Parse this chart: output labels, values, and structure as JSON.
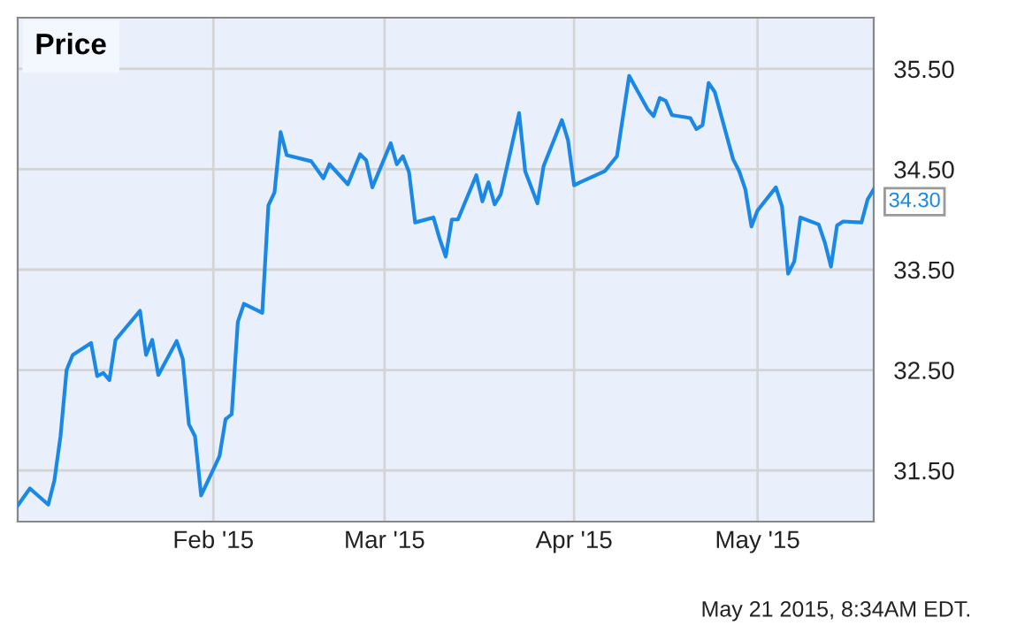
{
  "chart_data": {
    "type": "line",
    "title": "Price",
    "x": [
      "2014-12-31",
      "2015-01-02",
      "2015-01-05",
      "2015-01-06",
      "2015-01-07",
      "2015-01-08",
      "2015-01-09",
      "2015-01-12",
      "2015-01-13",
      "2015-01-14",
      "2015-01-15",
      "2015-01-16",
      "2015-01-20",
      "2015-01-21",
      "2015-01-22",
      "2015-01-23",
      "2015-01-26",
      "2015-01-27",
      "2015-01-28",
      "2015-01-29",
      "2015-01-30",
      "2015-02-02",
      "2015-02-03",
      "2015-02-04",
      "2015-02-05",
      "2015-02-06",
      "2015-02-09",
      "2015-02-10",
      "2015-02-11",
      "2015-02-12",
      "2015-02-13",
      "2015-02-17",
      "2015-02-19",
      "2015-02-20",
      "2015-02-23",
      "2015-02-25",
      "2015-02-26",
      "2015-02-27",
      "2015-03-02",
      "2015-03-03",
      "2015-03-04",
      "2015-03-05",
      "2015-03-06",
      "2015-03-09",
      "2015-03-10",
      "2015-03-11",
      "2015-03-12",
      "2015-03-13",
      "2015-03-16",
      "2015-03-17",
      "2015-03-18",
      "2015-03-19",
      "2015-03-20",
      "2015-03-23",
      "2015-03-24",
      "2015-03-26",
      "2015-03-27",
      "2015-03-30",
      "2015-03-31",
      "2015-04-01",
      "2015-04-02",
      "2015-04-06",
      "2015-04-08",
      "2015-04-10",
      "2015-04-13",
      "2015-04-14",
      "2015-04-15",
      "2015-04-16",
      "2015-04-17",
      "2015-04-20",
      "2015-04-21",
      "2015-04-22",
      "2015-04-23",
      "2015-04-24",
      "2015-04-27",
      "2015-04-28",
      "2015-04-29",
      "2015-04-30",
      "2015-05-01",
      "2015-05-04",
      "2015-05-05",
      "2015-05-06",
      "2015-05-07",
      "2015-05-08",
      "2015-05-11",
      "2015-05-12",
      "2015-05-13",
      "2015-05-14",
      "2015-05-15",
      "2015-05-18",
      "2015-05-19",
      "2015-05-20"
    ],
    "series": [
      {
        "color": "#1a88e6",
        "values": [
          31.15,
          31.32,
          31.16,
          31.4,
          31.84,
          32.5,
          32.65,
          32.77,
          32.44,
          32.47,
          32.4,
          32.8,
          33.09,
          32.65,
          32.8,
          32.45,
          32.79,
          32.61,
          31.96,
          31.84,
          31.25,
          31.64,
          32.01,
          32.06,
          32.98,
          33.16,
          33.07,
          34.14,
          34.27,
          34.87,
          34.64,
          34.58,
          34.41,
          34.55,
          34.35,
          34.65,
          34.59,
          34.32,
          34.76,
          34.55,
          34.63,
          34.47,
          33.97,
          34.02,
          33.81,
          33.63,
          34.0,
          34.0,
          34.44,
          34.18,
          34.37,
          34.15,
          34.25,
          35.06,
          34.48,
          34.16,
          34.53,
          34.99,
          34.79,
          34.34,
          34.37,
          34.48,
          34.63,
          35.43,
          35.1,
          35.03,
          35.21,
          35.18,
          35.04,
          35.01,
          34.9,
          34.94,
          35.36,
          35.27,
          34.6,
          34.48,
          34.3,
          33.93,
          34.09,
          34.32,
          34.13,
          33.46,
          33.58,
          34.02,
          33.95,
          33.77,
          33.53,
          33.94,
          33.98,
          33.97,
          34.2,
          34.3
        ]
      }
    ],
    "xlim": [
      "2014-12-31",
      "2015-05-20"
    ],
    "xticks": [
      {
        "value": "2015-02-01",
        "label": "Feb '15"
      },
      {
        "value": "2015-03-01",
        "label": "Mar '15"
      },
      {
        "value": "2015-04-01",
        "label": "Apr '15"
      },
      {
        "value": "2015-05-01",
        "label": "May '15"
      }
    ],
    "ylim": [
      30.99,
      36.01
    ],
    "yticks": [
      {
        "value": 31.5,
        "label": "31.50"
      },
      {
        "value": 32.5,
        "label": "32.50"
      },
      {
        "value": 33.5,
        "label": "33.50"
      },
      {
        "value": 34.5,
        "label": "34.50"
      },
      {
        "value": 35.5,
        "label": "35.50"
      }
    ],
    "grid": true,
    "legend": false,
    "marker": "none",
    "line_style": "solid",
    "annotations": [
      {
        "text": "34.30",
        "x": "2015-05-20",
        "y": 34.3
      },
      "May 21 2015, 8:34AM EDT."
    ]
  }
}
